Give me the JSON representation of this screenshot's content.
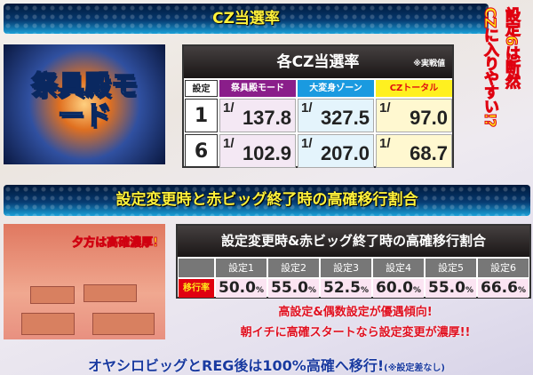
{
  "section1": {
    "banner": "CZ当選率",
    "callout_line1": "設定6は断然",
    "callout_line2": "CZに入りやすい!?",
    "image_caption": "祭具殿モード",
    "table": {
      "title": "各CZ当選率",
      "note": "※実戦値",
      "headers": [
        "設定",
        "祭具殿モード",
        "大変身ゾーン",
        "CZトータル"
      ],
      "header_colors": [
        "#ffffff",
        "#8a1e8a",
        "#1a9ae0",
        "#fff020"
      ],
      "rows": [
        {
          "setting": "1",
          "values": [
            "137.8",
            "327.5",
            "97.0"
          ]
        },
        {
          "setting": "6",
          "values": [
            "102.9",
            "207.0",
            "68.7"
          ]
        }
      ],
      "fraction_prefix": "1/"
    }
  },
  "section2": {
    "banner": "設定変更時と赤ビッグ終了時の高確移行割合",
    "image_caption": "夕方は高確濃厚!",
    "table": {
      "title": "設定変更時&赤ビッグ終了時の高確移行割合",
      "row_label": "移行率",
      "headers": [
        "設定1",
        "設定2",
        "設定3",
        "設定4",
        "設定5",
        "設定6"
      ],
      "values": [
        "50.0",
        "55.0",
        "52.5",
        "60.0",
        "55.0",
        "66.6"
      ],
      "unit": "%"
    },
    "note_line1": "高設定&偶数設定が優遇傾向!",
    "note_line2": "朝イチに高確スタートなら設定変更が濃厚!!",
    "footer": "オヤシロビッグとREG後は100%高確へ移行!",
    "footer_note": "(※設定差なし)"
  }
}
